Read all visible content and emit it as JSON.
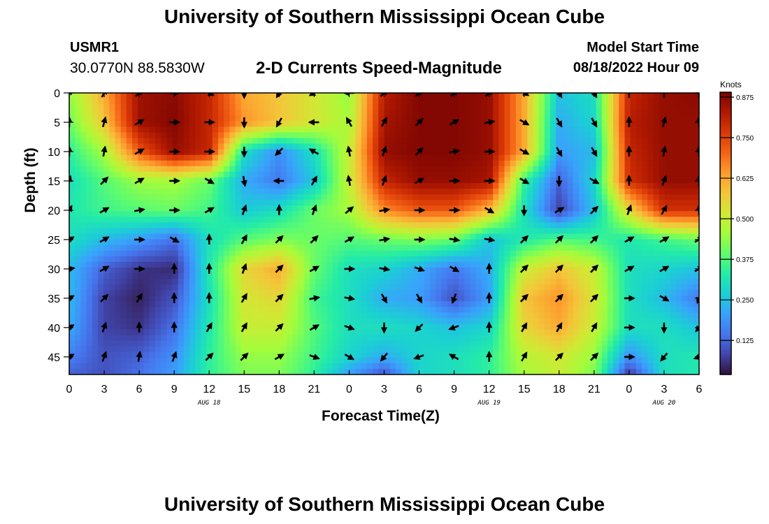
{
  "header": {
    "title": "University of Southern Mississippi Ocean Cube",
    "station": "USMR1",
    "coordinates": "30.0770N  88.5830W",
    "subtitle": "2-D Currents Speed-Magnitude",
    "model_start_label": "Model Start Time",
    "model_start_value": "08/18/2022 Hour 09"
  },
  "footer": {
    "title": "University of Southern Mississippi Ocean Cube"
  },
  "chart_data": {
    "type": "heatmap",
    "xlabel": "Forecast Time(Z)",
    "ylabel": "Depth (ft)",
    "x_tick_labels": [
      "0",
      "3",
      "6",
      "9",
      "12",
      "15",
      "18",
      "21",
      "0",
      "3",
      "6",
      "9",
      "12",
      "15",
      "18",
      "21",
      "0",
      "3",
      "6"
    ],
    "date_labels": [
      {
        "hours": 12,
        "text": "AUG 18"
      },
      {
        "hours": 36,
        "text": "AUG 19"
      },
      {
        "hours": 51,
        "text": "AUG 20"
      }
    ],
    "x_range_hours": [
      0,
      54
    ],
    "y_ticks": [
      0,
      5,
      10,
      15,
      20,
      25,
      30,
      35,
      40,
      45
    ],
    "y_range": [
      0,
      48
    ],
    "colorbar": {
      "unit": "Knots",
      "range": [
        0.02,
        0.89
      ],
      "ticks": [
        0.125,
        0.25,
        0.375,
        0.5,
        0.625,
        0.75,
        0.875
      ],
      "tick_labels": [
        "0.125",
        "0.250",
        "0.375",
        "0.500",
        "0.625",
        "0.750",
        "0.875"
      ]
    },
    "colormap": [
      "#30123b",
      "#4145ab",
      "#4675ed",
      "#39a2fc",
      "#1bcfd4",
      "#24eca6",
      "#61fc6c",
      "#a4fc3b",
      "#d1e834",
      "#f3c63a",
      "#fe9b2d",
      "#f36315",
      "#d93806",
      "#b11901",
      "#7a0402"
    ],
    "speed_grid": {
      "x_hours": [
        0,
        3,
        6,
        9,
        12,
        15,
        18,
        21,
        24,
        27,
        30,
        33,
        36,
        39,
        42,
        45,
        48,
        51,
        54
      ],
      "depths": [
        0,
        5,
        10,
        15,
        20,
        25,
        30,
        35,
        40,
        45,
        48
      ],
      "speed": [
        [
          0.44,
          0.62,
          0.85,
          0.87,
          0.8,
          0.62,
          0.58,
          0.52,
          0.44,
          0.82,
          0.88,
          0.88,
          0.86,
          0.62,
          0.25,
          0.3,
          0.8,
          0.86,
          0.87
        ],
        [
          0.4,
          0.58,
          0.85,
          0.88,
          0.8,
          0.65,
          0.58,
          0.52,
          0.46,
          0.84,
          0.88,
          0.88,
          0.86,
          0.62,
          0.22,
          0.28,
          0.82,
          0.86,
          0.86
        ],
        [
          0.34,
          0.46,
          0.72,
          0.86,
          0.8,
          0.3,
          0.18,
          0.3,
          0.5,
          0.86,
          0.88,
          0.88,
          0.86,
          0.62,
          0.2,
          0.24,
          0.8,
          0.86,
          0.86
        ],
        [
          0.3,
          0.38,
          0.45,
          0.46,
          0.4,
          0.22,
          0.15,
          0.26,
          0.5,
          0.8,
          0.86,
          0.86,
          0.84,
          0.35,
          0.12,
          0.28,
          0.78,
          0.86,
          0.86
        ],
        [
          0.32,
          0.36,
          0.38,
          0.4,
          0.36,
          0.26,
          0.3,
          0.4,
          0.46,
          0.66,
          0.72,
          0.72,
          0.6,
          0.3,
          0.08,
          0.25,
          0.55,
          0.78,
          0.78
        ],
        [
          0.3,
          0.24,
          0.2,
          0.14,
          0.3,
          0.38,
          0.42,
          0.4,
          0.38,
          0.4,
          0.42,
          0.4,
          0.25,
          0.32,
          0.38,
          0.36,
          0.32,
          0.36,
          0.4
        ],
        [
          0.24,
          0.12,
          0.06,
          0.05,
          0.32,
          0.55,
          0.62,
          0.4,
          0.3,
          0.28,
          0.22,
          0.15,
          0.22,
          0.5,
          0.58,
          0.5,
          0.3,
          0.28,
          0.25
        ],
        [
          0.24,
          0.08,
          0.04,
          0.1,
          0.3,
          0.52,
          0.55,
          0.36,
          0.3,
          0.22,
          0.2,
          0.1,
          0.2,
          0.58,
          0.65,
          0.52,
          0.3,
          0.24,
          0.15
        ],
        [
          0.22,
          0.08,
          0.06,
          0.14,
          0.32,
          0.5,
          0.5,
          0.38,
          0.3,
          0.3,
          0.28,
          0.25,
          0.28,
          0.55,
          0.62,
          0.5,
          0.3,
          0.3,
          0.25
        ],
        [
          0.16,
          0.1,
          0.12,
          0.18,
          0.34,
          0.44,
          0.44,
          0.36,
          0.28,
          0.22,
          0.28,
          0.3,
          0.34,
          0.48,
          0.52,
          0.44,
          0.18,
          0.3,
          0.32
        ],
        [
          0.12,
          0.1,
          0.14,
          0.2,
          0.34,
          0.42,
          0.42,
          0.34,
          0.2,
          0.1,
          0.28,
          0.3,
          0.34,
          0.46,
          0.5,
          0.42,
          0.06,
          0.3,
          0.32
        ]
      ]
    },
    "vectors": {
      "x_hours": [
        0,
        3,
        6,
        9,
        12,
        15,
        18,
        21,
        24,
        27,
        30,
        33,
        36,
        39,
        42,
        45,
        48,
        51,
        54
      ],
      "depths": [
        0,
        5,
        10,
        15,
        20,
        25,
        30,
        35,
        40,
        45
      ],
      "direction_deg": [
        [
          45,
          30,
          45,
          90,
          120,
          180,
          210,
          240,
          270,
          45,
          45,
          45,
          45,
          120,
          150,
          150,
          0,
          0,
          0
        ],
        [
          0,
          15,
          60,
          90,
          90,
          180,
          210,
          270,
          330,
          30,
          45,
          60,
          80,
          120,
          150,
          150,
          0,
          15,
          0
        ],
        [
          0,
          10,
          60,
          90,
          90,
          180,
          225,
          300,
          350,
          20,
          45,
          80,
          90,
          120,
          150,
          150,
          0,
          10,
          0
        ],
        [
          15,
          45,
          60,
          90,
          120,
          170,
          270,
          30,
          350,
          20,
          60,
          90,
          90,
          120,
          180,
          120,
          0,
          20,
          0
        ],
        [
          30,
          60,
          80,
          90,
          60,
          20,
          0,
          20,
          50,
          80,
          90,
          90,
          120,
          180,
          60,
          45,
          20,
          30,
          0
        ],
        [
          60,
          60,
          90,
          120,
          0,
          30,
          45,
          45,
          60,
          80,
          90,
          100,
          100,
          45,
          45,
          45,
          60,
          60,
          60
        ],
        [
          80,
          60,
          90,
          0,
          0,
          20,
          45,
          60,
          90,
          100,
          110,
          120,
          0,
          45,
          45,
          45,
          60,
          60,
          60
        ],
        [
          60,
          45,
          30,
          0,
          0,
          30,
          45,
          80,
          100,
          150,
          150,
          200,
          0,
          45,
          45,
          45,
          90,
          120,
          200
        ],
        [
          60,
          20,
          0,
          0,
          30,
          30,
          45,
          60,
          110,
          180,
          225,
          250,
          0,
          30,
          30,
          30,
          90,
          180,
          220
        ],
        [
          60,
          20,
          10,
          20,
          45,
          45,
          60,
          110,
          120,
          220,
          250,
          300,
          0,
          30,
          45,
          45,
          90,
          220,
          250
        ]
      ]
    }
  }
}
